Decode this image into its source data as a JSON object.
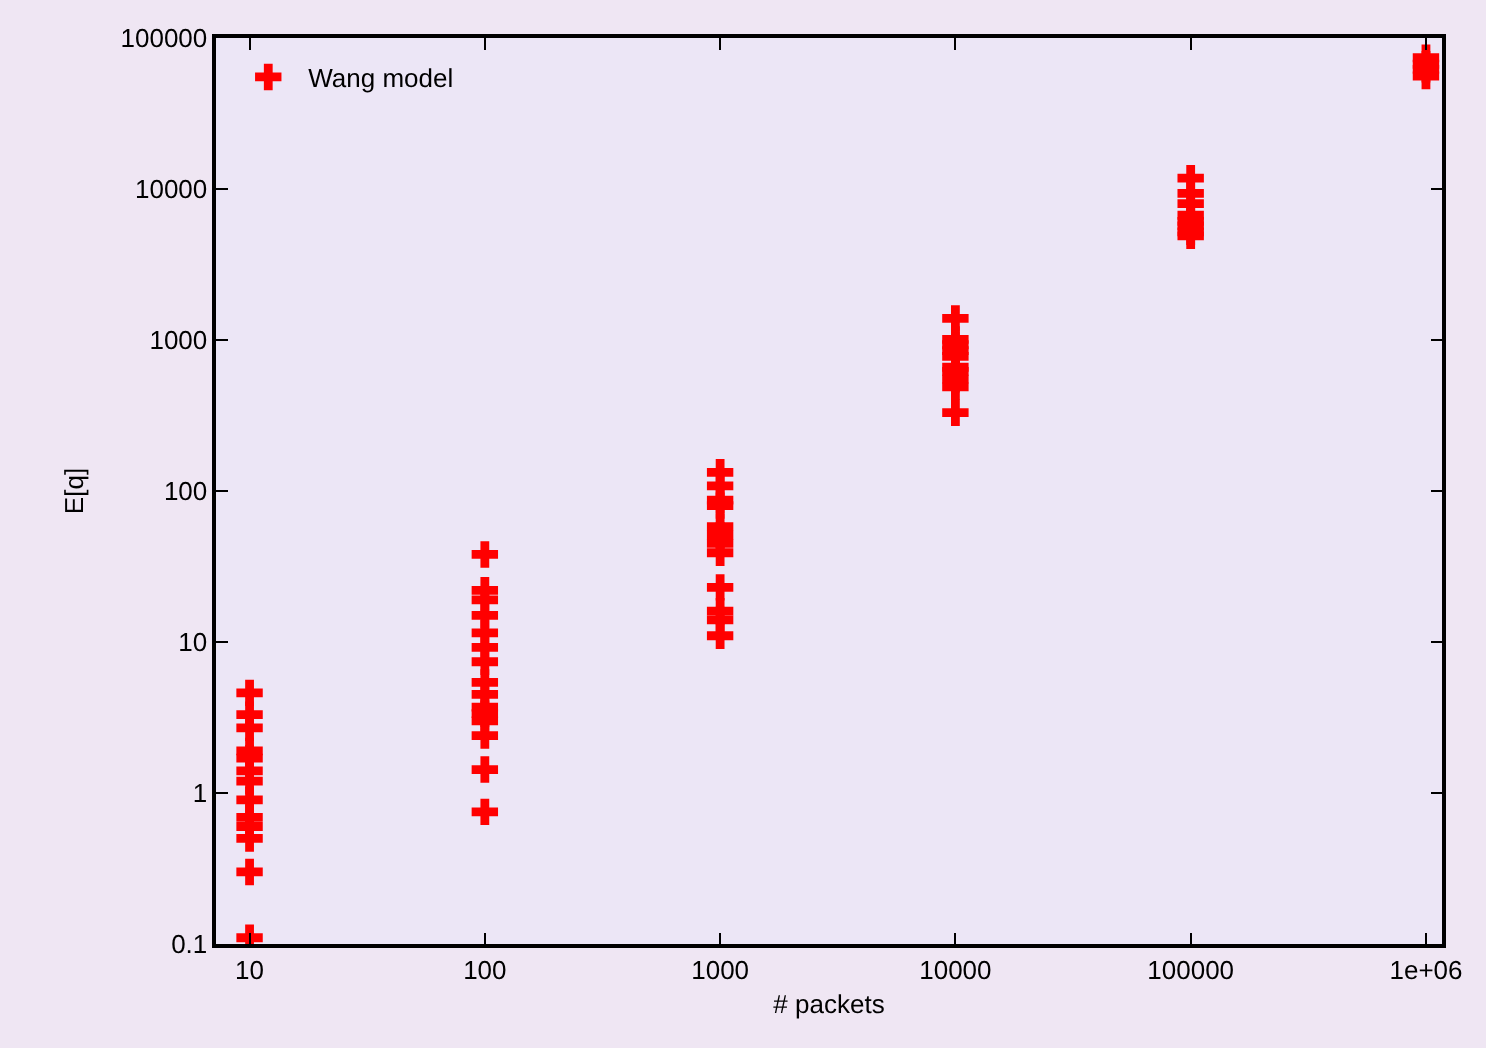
{
  "chart_data": {
    "type": "scatter",
    "xlabel": "# packets",
    "ylabel": "E[q]",
    "log": "xy",
    "marker": "cross",
    "legend": "top left",
    "grid": false,
    "xlim": [
      7.2,
      1170000
    ],
    "ylim": [
      0.1,
      100000
    ],
    "xticks": [
      10,
      100,
      1000,
      10000,
      100000,
      {
        "value": 1000000,
        "label": "1e+06"
      }
    ],
    "yticks": [
      0.1,
      1,
      10,
      100,
      1000,
      10000,
      100000
    ],
    "series": [
      {
        "name": "Wang model",
        "color": "#ff0000",
        "x": [
          10,
          10,
          10,
          10,
          10,
          10,
          10,
          10,
          10,
          10,
          10,
          10,
          10,
          100,
          100,
          100,
          100,
          100,
          100,
          100,
          100,
          100,
          100,
          100,
          100,
          100,
          100,
          100,
          1000,
          1000,
          1000,
          1000,
          1000,
          1000,
          1000,
          1000,
          1000,
          1000,
          1000,
          1000,
          10000,
          10000,
          10000,
          10000,
          10000,
          10000,
          10000,
          10000,
          10000,
          10000,
          100000,
          100000,
          100000,
          100000,
          100000,
          100000,
          100000,
          100000,
          1000000,
          1000000,
          1000000,
          1000000
        ],
        "values": [
          4.6,
          3.3,
          2.7,
          1.9,
          1.7,
          1.4,
          1.2,
          0.9,
          0.69,
          0.6,
          0.5,
          0.3,
          0.11,
          38,
          22,
          19,
          15,
          11.5,
          9.2,
          7.4,
          5.4,
          4.5,
          3.7,
          3.35,
          3.0,
          2.4,
          1.43,
          0.75,
          133,
          108,
          87,
          80,
          58,
          51,
          45,
          39,
          23,
          16,
          14,
          11,
          1390,
          1010,
          930,
          850,
          780,
          660,
          620,
          550,
          490,
          330,
          11800,
          9350,
          8000,
          6700,
          6100,
          5700,
          5200,
          4900,
          74000,
          67000,
          62000,
          56000
        ]
      }
    ]
  }
}
